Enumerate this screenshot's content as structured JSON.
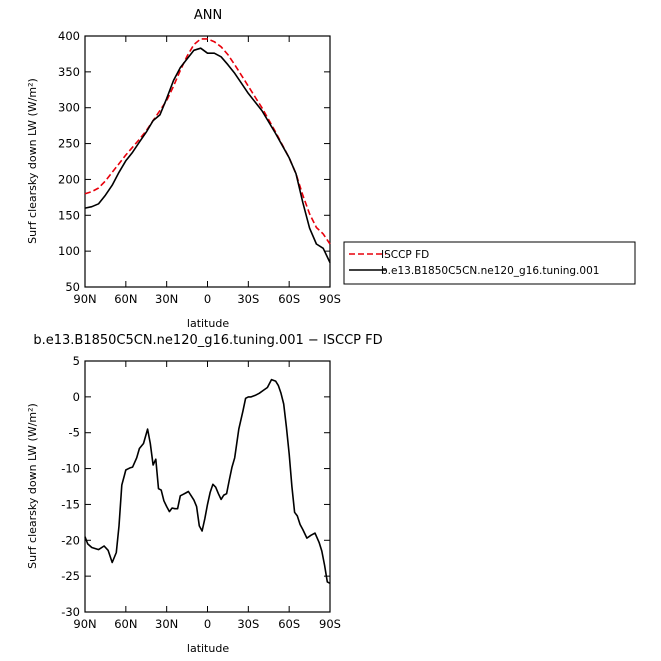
{
  "chart_data": [
    {
      "type": "line",
      "title": "ANN",
      "xlabel": "latitude",
      "ylabel": "Surf clearsky down LW (W/m²)",
      "xlim": [
        90,
        -90
      ],
      "ylim": [
        50,
        400
      ],
      "xticks": [
        90,
        60,
        30,
        0,
        -30,
        -60,
        -90
      ],
      "xtick_labels": [
        "90N",
        "60N",
        "30N",
        "0",
        "30S",
        "60S",
        "90S"
      ],
      "yticks": [
        50,
        100,
        150,
        200,
        250,
        300,
        350,
        400
      ],
      "ytick_labels": [
        "50",
        "100",
        "150",
        "200",
        "250",
        "300",
        "350",
        "400"
      ],
      "legend_position": "right-outside",
      "series": [
        {
          "name": "ISCCP FD",
          "color": "#e8000b",
          "dash": "dashed",
          "x": [
            90,
            85,
            80,
            75,
            70,
            65,
            60,
            55,
            50,
            45,
            40,
            35,
            30,
            25,
            20,
            15,
            10,
            5,
            0,
            -5,
            -10,
            -15,
            -20,
            -25,
            -30,
            -35,
            -40,
            -45,
            -50,
            -55,
            -60,
            -65,
            -70,
            -75,
            -80,
            -85,
            -90
          ],
          "values": [
            180,
            183,
            188,
            198,
            210,
            222,
            234,
            245,
            256,
            268,
            282,
            296,
            310,
            330,
            352,
            372,
            388,
            396,
            396,
            392,
            385,
            374,
            360,
            345,
            330,
            315,
            300,
            283,
            266,
            248,
            230,
            208,
            178,
            152,
            133,
            124,
            110
          ]
        },
        {
          "name": "b.e13.B1850C5CN.ne120_g16.tuning.001",
          "color": "#000000",
          "dash": "solid",
          "x": [
            90,
            85,
            80,
            75,
            70,
            65,
            60,
            55,
            50,
            45,
            40,
            35,
            30,
            25,
            20,
            15,
            10,
            5,
            0,
            -5,
            -10,
            -15,
            -20,
            -25,
            -30,
            -35,
            -40,
            -45,
            -50,
            -55,
            -60,
            -65,
            -70,
            -75,
            -80,
            -85,
            -90
          ],
          "values": [
            160,
            162,
            166,
            178,
            192,
            210,
            226,
            238,
            252,
            266,
            282,
            290,
            313,
            338,
            356,
            368,
            380,
            383,
            376,
            376,
            371,
            360,
            348,
            334,
            320,
            308,
            296,
            280,
            264,
            247,
            230,
            208,
            168,
            132,
            110,
            104,
            84
          ]
        }
      ]
    },
    {
      "type": "line",
      "title": "b.e13.B1850C5CN.ne120_g16.tuning.001 − ISCCP FD",
      "xlabel": "latitude",
      "ylabel": "Surf clearsky down LW (W/m²)",
      "xlim": [
        90,
        -90
      ],
      "ylim": [
        -30,
        5
      ],
      "xticks": [
        90,
        60,
        30,
        0,
        -30,
        -60,
        -90
      ],
      "xtick_labels": [
        "90N",
        "60N",
        "30N",
        "0",
        "30S",
        "60S",
        "90S"
      ],
      "yticks": [
        -30,
        -25,
        -20,
        -15,
        -10,
        -5,
        0,
        5
      ],
      "ytick_labels": [
        "-30",
        "-25",
        "-20",
        "-15",
        "-10",
        "-5",
        "0",
        "5"
      ],
      "series": [
        {
          "color": "#000000",
          "x": [
            90,
            88,
            85,
            80,
            76,
            73,
            70,
            67,
            65,
            63,
            61,
            60,
            57,
            55,
            52,
            50,
            47,
            44,
            42,
            40,
            38,
            36,
            34,
            32,
            30,
            28,
            26,
            24,
            22,
            20,
            18,
            16,
            14,
            12,
            10,
            8,
            6,
            4,
            2,
            0,
            -2,
            -4,
            -6,
            -8,
            -10,
            -12,
            -14,
            -16,
            -18,
            -20,
            -23,
            -26,
            -28,
            -30,
            -32,
            -35,
            -38,
            -41,
            -44,
            -47,
            -50,
            -52,
            -54,
            -56,
            -58,
            -60,
            -62,
            -64,
            -66,
            -68,
            -70,
            -73,
            -76,
            -79,
            -82,
            -84,
            -86,
            -88,
            -90
          ],
          "values": [
            -19.5,
            -20.5,
            -21,
            -21.3,
            -20.8,
            -21.4,
            -23.1,
            -21.7,
            -18,
            -12.3,
            -10.9,
            -10.2,
            -9.9,
            -9.8,
            -8.5,
            -7.2,
            -6.5,
            -4.5,
            -6.5,
            -9.5,
            -8.7,
            -12.8,
            -13,
            -14.5,
            -15.3,
            -16,
            -15.5,
            -15.6,
            -15.6,
            -13.8,
            -13.6,
            -13.4,
            -13.2,
            -13.8,
            -14.4,
            -15.3,
            -18,
            -18.7,
            -17,
            -15,
            -13.3,
            -12.2,
            -12.6,
            -13.5,
            -14.3,
            -13.7,
            -13.5,
            -11.6,
            -9.8,
            -8.5,
            -4.5,
            -2,
            -0.2,
            0,
            0,
            0.2,
            0.5,
            0.9,
            1.3,
            2.4,
            2.2,
            1.6,
            0.5,
            -1,
            -4.2,
            -8,
            -12.5,
            -16.1,
            -16.6,
            -17.8,
            -18.5,
            -19.7,
            -19.3,
            -19,
            -20.3,
            -21.5,
            -23.5,
            -25.8,
            -26
          ]
        }
      ]
    }
  ],
  "legend": {
    "entries": [
      {
        "label": "ISCCP FD",
        "color": "#e8000b",
        "dash": "dashed"
      },
      {
        "label": "b.e13.B1850C5CN.ne120_g16.tuning.001",
        "color": "#000000",
        "dash": "solid"
      }
    ]
  }
}
